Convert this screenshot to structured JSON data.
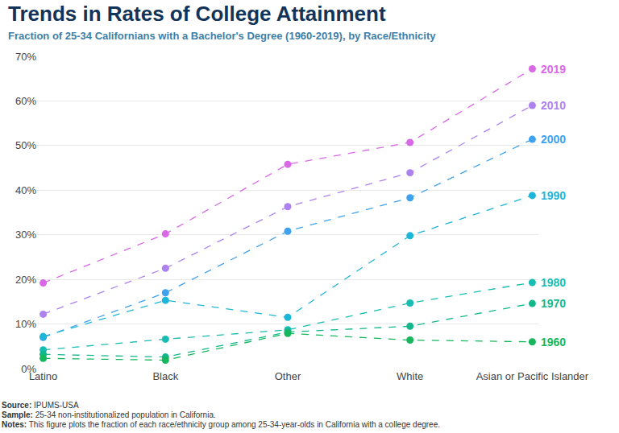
{
  "chart_data": {
    "type": "line",
    "title": "Trends in Rates of College Attainment",
    "subtitle": "Fraction of 25-34 Californians with a Bachelor's Degree (1960-2019), by Race/Ethnicity",
    "categories": [
      "Latino",
      "Black",
      "Other",
      "White",
      "Asian or Pacific Islander"
    ],
    "series": [
      {
        "name": "2019",
        "color": "#d868e6",
        "values": [
          19.2,
          30.2,
          45.8,
          50.7,
          67.2
        ]
      },
      {
        "name": "2010",
        "color": "#ad82ee",
        "values": [
          12.2,
          22.5,
          36.3,
          43.9,
          59.0
        ]
      },
      {
        "name": "2000",
        "color": "#3ea2ef",
        "values": [
          7.0,
          17.0,
          30.8,
          38.3,
          51.4
        ]
      },
      {
        "name": "1990",
        "color": "#1db6d9",
        "values": [
          7.2,
          15.3,
          11.5,
          29.8,
          38.8
        ]
      },
      {
        "name": "1980",
        "color": "#17bdb3",
        "values": [
          4.2,
          6.6,
          8.7,
          14.7,
          19.3
        ]
      },
      {
        "name": "1970",
        "color": "#14b78b",
        "values": [
          3.2,
          2.6,
          8.2,
          9.5,
          14.6
        ]
      },
      {
        "name": "1960",
        "color": "#16b65c",
        "values": [
          2.3,
          1.9,
          7.9,
          6.4,
          6.0
        ]
      }
    ],
    "ylim": [
      0,
      70
    ],
    "yticks": [
      {
        "value": 0,
        "label": "0%"
      },
      {
        "value": 10,
        "label": "10%"
      },
      {
        "value": 20,
        "label": "20%"
      },
      {
        "value": 30,
        "label": "30%"
      },
      {
        "value": 40,
        "label": "40%"
      },
      {
        "value": 50,
        "label": "50%"
      },
      {
        "value": 60,
        "label": "60%"
      },
      {
        "value": 70,
        "label": "70%"
      }
    ],
    "grid": true,
    "marker": "circle",
    "line_style": "dash",
    "footnotes": [
      {
        "label": "Source:",
        "text": "IPUMS-USA"
      },
      {
        "label": "Sample:",
        "text": "25-34 non-institutionalized population in California."
      },
      {
        "label": "Notes:",
        "text": "This figure plots the fraction of each race/ethnicity group among 25-34-year-olds in California with a college degree."
      }
    ]
  }
}
